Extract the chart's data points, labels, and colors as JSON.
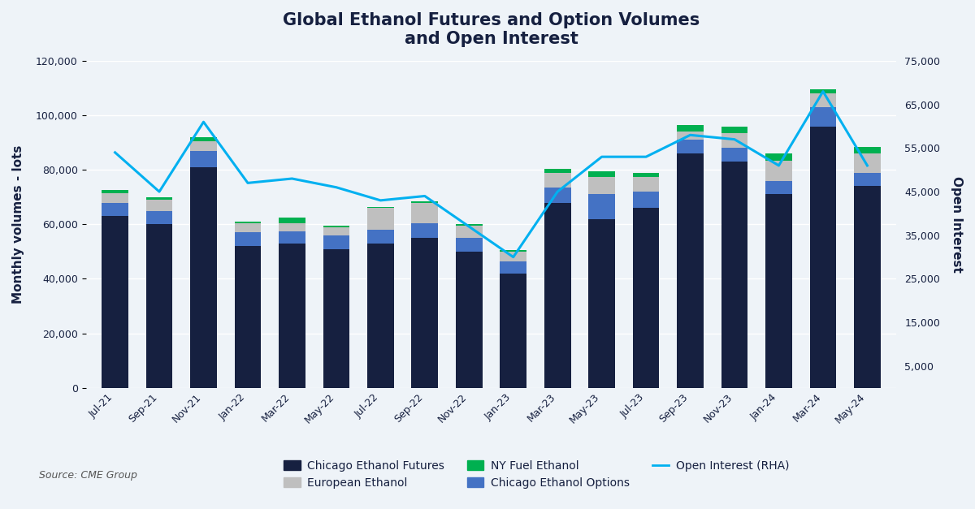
{
  "title": "Global Ethanol Futures and Option Volumes\nand Open Interest",
  "ylabel_left": "Monthly volumes - lots",
  "ylabel_right": "Open Interest",
  "source": "Source: CME Group",
  "categories": [
    "Jul-21",
    "Sep-21",
    "Nov-21",
    "Jan-22",
    "Mar-22",
    "May-22",
    "Jul-22",
    "Sep-22",
    "Nov-22",
    "Jan-23",
    "Mar-23",
    "May-23",
    "Jul-23",
    "Sep-23",
    "Nov-23",
    "Jan-24",
    "Mar-24",
    "May-24"
  ],
  "chicago_futures": [
    63000,
    60000,
    81000,
    52000,
    53000,
    51000,
    53000,
    55000,
    50000,
    42000,
    68000,
    62000,
    66000,
    86000,
    83000,
    71000,
    96000,
    74000
  ],
  "chicago_options": [
    5000,
    5000,
    6000,
    5000,
    4500,
    5000,
    5000,
    5500,
    5000,
    4500,
    5500,
    9000,
    6000,
    5000,
    5000,
    5000,
    7000,
    5000
  ],
  "european_ethanol": [
    3500,
    4000,
    3500,
    3500,
    3000,
    3000,
    8000,
    7500,
    4500,
    3500,
    5500,
    6500,
    5500,
    3000,
    5500,
    7500,
    5000,
    7000
  ],
  "ny_fuel_ethanol": [
    1000,
    1000,
    1500,
    500,
    2000,
    500,
    500,
    500,
    500,
    500,
    1500,
    2000,
    1500,
    2500,
    2500,
    2500,
    1500,
    2500
  ],
  "open_interest": [
    54000,
    45000,
    61000,
    47000,
    48000,
    46000,
    43000,
    44000,
    37000,
    30000,
    45000,
    53000,
    53000,
    58000,
    57000,
    51000,
    68000,
    51000
  ],
  "ylim_left": [
    0,
    120000
  ],
  "ylim_right": [
    0,
    75000
  ],
  "yticks_left": [
    0,
    20000,
    40000,
    60000,
    80000,
    100000,
    120000
  ],
  "yticks_right": [
    5000,
    15000,
    25000,
    35000,
    45000,
    55000,
    65000,
    75000
  ],
  "colors": {
    "chicago_futures": "#162040",
    "chicago_options": "#4472c4",
    "european_ethanol": "#bfbfbf",
    "ny_fuel_ethanol": "#00b050",
    "open_interest_line": "#00b0f0",
    "background": "#eef3f8",
    "plot_bg": "#eef3f8",
    "grid": "#ffffff"
  },
  "legend_labels": {
    "chicago_futures": "Chicago Ethanol Futures",
    "european_ethanol": "European Ethanol",
    "ny_fuel_ethanol": "NY Fuel Ethanol",
    "chicago_options": "Chicago Ethanol Options",
    "open_interest": "Open Interest (RHA)"
  }
}
